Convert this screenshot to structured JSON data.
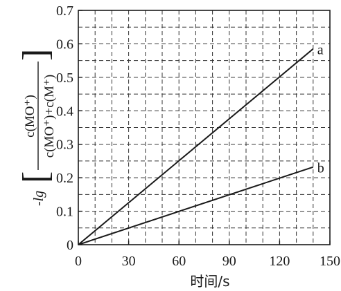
{
  "chart_data": {
    "type": "line",
    "xlabel": "时间/s",
    "ylabel": {
      "prefix": "-lg",
      "numerator": "c(MO⁺)",
      "denominator": "c(MO⁺)+c(M⁺)"
    },
    "xlim": [
      0,
      150
    ],
    "ylim": [
      0,
      0.7
    ],
    "x_ticks": [
      "0",
      "30",
      "60",
      "90",
      "120",
      "150"
    ],
    "y_ticks": [
      "0",
      "0.1",
      "0.2",
      "0.3",
      "0.4",
      "0.5",
      "0.6",
      "0.7"
    ],
    "grid": "dashed",
    "series": [
      {
        "name": "a",
        "x": [
          0,
          140
        ],
        "y": [
          0,
          0.585
        ]
      },
      {
        "name": "b",
        "x": [
          0,
          140
        ],
        "y": [
          0,
          0.232
        ]
      }
    ]
  }
}
